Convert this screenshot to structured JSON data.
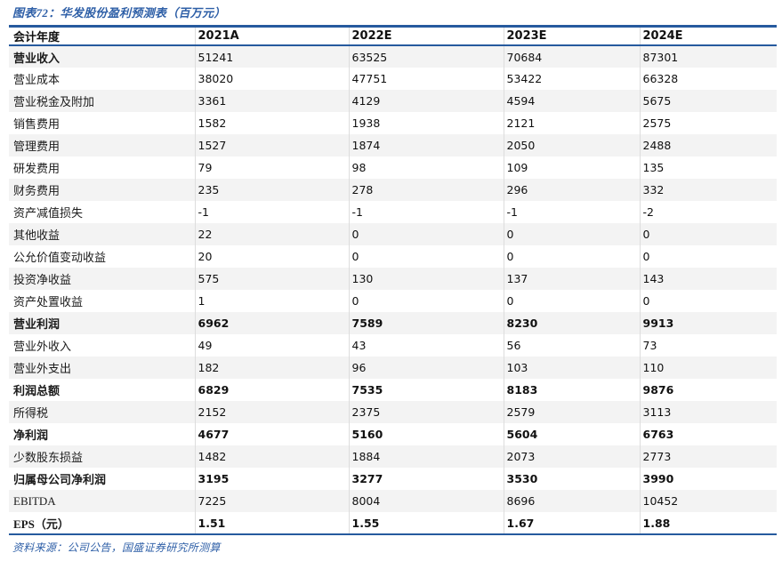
{
  "title": "图表72：华发股份盈利预测表（百万元）",
  "source_note": "资料来源：公司公告，国盛证券研究所测算",
  "colors": {
    "accent_blue": "#2E5FA7",
    "border_navy": "#265A9E",
    "stripe_gray": "#F3F3F3",
    "text_black": "#111111"
  },
  "table": {
    "columns": [
      "会计年度",
      "2021A",
      "2022E",
      "2023E",
      "2024E"
    ],
    "rows": [
      {
        "label": "营业收入",
        "values": [
          "51241",
          "63525",
          "70684",
          "87301"
        ],
        "label_bold": true,
        "values_bold": false
      },
      {
        "label": "营业成本",
        "values": [
          "38020",
          "47751",
          "53422",
          "66328"
        ],
        "label_bold": false,
        "values_bold": false
      },
      {
        "label": "营业税金及附加",
        "values": [
          "3361",
          "4129",
          "4594",
          "5675"
        ],
        "label_bold": false,
        "values_bold": false
      },
      {
        "label": "销售费用",
        "values": [
          "1582",
          "1938",
          "2121",
          "2575"
        ],
        "label_bold": false,
        "values_bold": false
      },
      {
        "label": "管理费用",
        "values": [
          "1527",
          "1874",
          "2050",
          "2488"
        ],
        "label_bold": false,
        "values_bold": false
      },
      {
        "label": "研发费用",
        "values": [
          "79",
          "98",
          "109",
          "135"
        ],
        "label_bold": false,
        "values_bold": false
      },
      {
        "label": "财务费用",
        "values": [
          "235",
          "278",
          "296",
          "332"
        ],
        "label_bold": false,
        "values_bold": false
      },
      {
        "label": "资产减值损失",
        "values": [
          "-1",
          "-1",
          "-1",
          "-2"
        ],
        "label_bold": false,
        "values_bold": false
      },
      {
        "label": "其他收益",
        "values": [
          "22",
          "0",
          "0",
          "0"
        ],
        "label_bold": false,
        "values_bold": false
      },
      {
        "label": "公允价值变动收益",
        "values": [
          "20",
          "0",
          "0",
          "0"
        ],
        "label_bold": false,
        "values_bold": false
      },
      {
        "label": "投资净收益",
        "values": [
          "575",
          "130",
          "137",
          "143"
        ],
        "label_bold": false,
        "values_bold": false
      },
      {
        "label": "资产处置收益",
        "values": [
          "1",
          "0",
          "0",
          "0"
        ],
        "label_bold": false,
        "values_bold": false
      },
      {
        "label": "营业利润",
        "values": [
          "6962",
          "7589",
          "8230",
          "9913"
        ],
        "label_bold": true,
        "values_bold": true
      },
      {
        "label": "营业外收入",
        "values": [
          "49",
          "43",
          "56",
          "73"
        ],
        "label_bold": false,
        "values_bold": false
      },
      {
        "label": "营业外支出",
        "values": [
          "182",
          "96",
          "103",
          "110"
        ],
        "label_bold": false,
        "values_bold": false
      },
      {
        "label": "利润总额",
        "values": [
          "6829",
          "7535",
          "8183",
          "9876"
        ],
        "label_bold": true,
        "values_bold": true
      },
      {
        "label": "所得税",
        "values": [
          "2152",
          "2375",
          "2579",
          "3113"
        ],
        "label_bold": false,
        "values_bold": false
      },
      {
        "label": "净利润",
        "values": [
          "4677",
          "5160",
          "5604",
          "6763"
        ],
        "label_bold": true,
        "values_bold": true
      },
      {
        "label": "少数股东损益",
        "values": [
          "1482",
          "1884",
          "2073",
          "2773"
        ],
        "label_bold": false,
        "values_bold": false
      },
      {
        "label": "归属母公司净利润",
        "values": [
          "3195",
          "3277",
          "3530",
          "3990"
        ],
        "label_bold": true,
        "values_bold": true
      },
      {
        "label": "EBITDA",
        "values": [
          "7225",
          "8004",
          "8696",
          "10452"
        ],
        "label_bold": false,
        "values_bold": false
      },
      {
        "label": "EPS（元）",
        "values": [
          "1.51",
          "1.55",
          "1.67",
          "1.88"
        ],
        "label_bold": true,
        "values_bold": true
      }
    ]
  }
}
